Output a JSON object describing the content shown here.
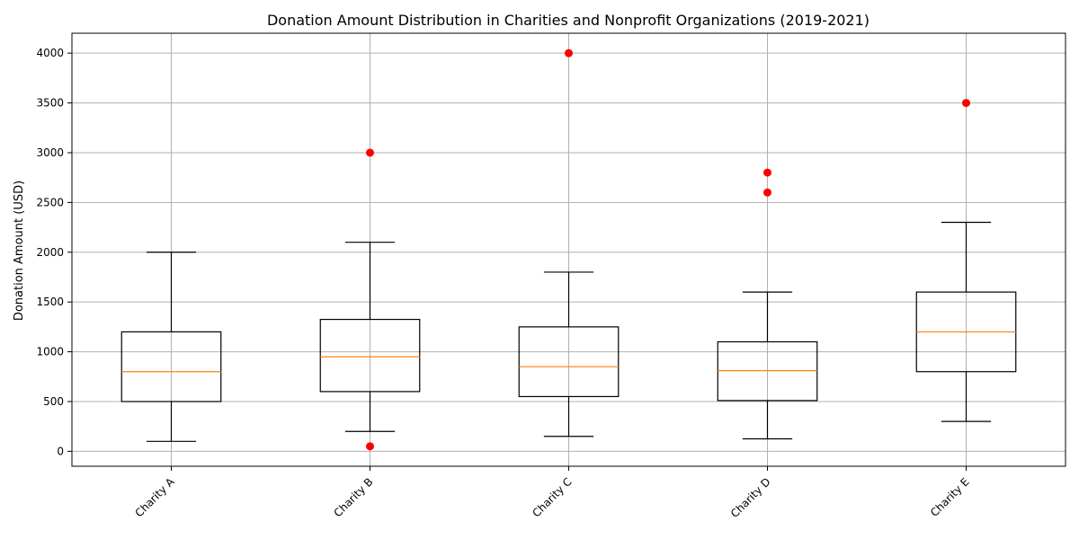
{
  "chart_data": {
    "type": "box",
    "title": "Donation Amount Distribution in Charities and Nonprofit Organizations (2019-2021)",
    "xlabel": "",
    "ylabel": "Donation Amount (USD)",
    "ylim": [
      -150,
      4200
    ],
    "yticks": [
      0,
      500,
      1000,
      1500,
      2000,
      2500,
      3000,
      3500,
      4000
    ],
    "grid": true,
    "categories": [
      "Charity A",
      "Charity B",
      "Charity C",
      "Charity D",
      "Charity E"
    ],
    "boxes": [
      {
        "label": "Charity A",
        "whisker_low": 100,
        "q1": 500,
        "median": 800,
        "q3": 1200,
        "whisker_high": 2000,
        "outliers": []
      },
      {
        "label": "Charity B",
        "whisker_low": 200,
        "q1": 600,
        "median": 950,
        "q3": 1325,
        "whisker_high": 2100,
        "outliers": [
          3000,
          50
        ]
      },
      {
        "label": "Charity C",
        "whisker_low": 150,
        "q1": 550,
        "median": 850,
        "q3": 1250,
        "whisker_high": 1800,
        "outliers": [
          4000
        ]
      },
      {
        "label": "Charity D",
        "whisker_low": 125,
        "q1": 510,
        "median": 810,
        "q3": 1100,
        "whisker_high": 1600,
        "outliers": [
          2800,
          2600
        ]
      },
      {
        "label": "Charity E",
        "whisker_low": 300,
        "q1": 800,
        "median": 1200,
        "q3": 1600,
        "whisker_high": 2300,
        "outliers": [
          3500
        ]
      }
    ],
    "colors": {
      "box": "#000000",
      "median": "#ff7f0e",
      "outlier": "#ff0000",
      "grid": "#b0b0b0"
    }
  }
}
